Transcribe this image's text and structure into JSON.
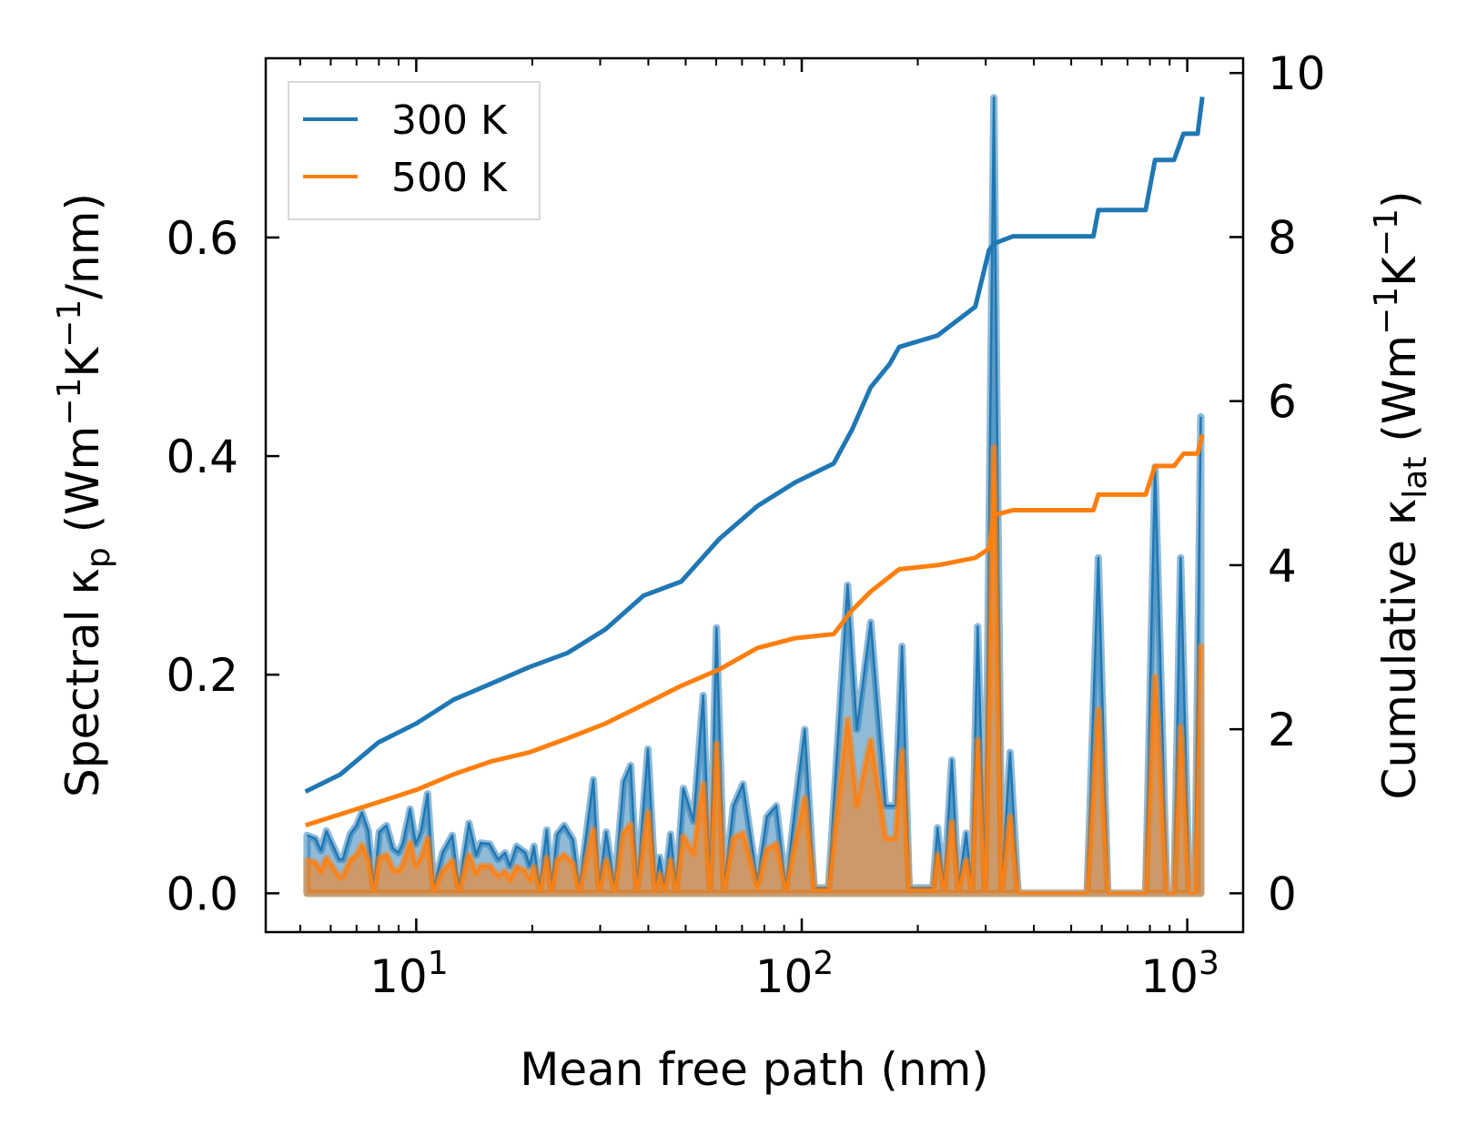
{
  "chart_data": {
    "type": "line",
    "xlabel": "Mean free path (nm)",
    "ylabel_left": "Spectral κ_p (Wm^{−1}K^{−1}/nm)",
    "ylabel_right": "Cumulative κ_lat (Wm^{−1}K^{−1})",
    "xscale": "log",
    "xlim": [
      4.07,
      1396
    ],
    "ylim_left": [
      -0.0355,
      0.764
    ],
    "ylim_right": [
      -0.473,
      10.18
    ],
    "x_ticks": [
      {
        "value": 10,
        "base": "10",
        "exp": "1"
      },
      {
        "value": 100,
        "base": "10",
        "exp": "2"
      },
      {
        "value": 1000,
        "base": "10",
        "exp": "3"
      }
    ],
    "y_left_ticks": [
      {
        "value": 0,
        "label": "0.0"
      },
      {
        "value": 0.2,
        "label": "0.2"
      },
      {
        "value": 0.4,
        "label": "0.4"
      },
      {
        "value": 0.6,
        "label": "0.6"
      }
    ],
    "y_right_ticks": [
      {
        "value": 0,
        "label": "0"
      },
      {
        "value": 2,
        "label": "2"
      },
      {
        "value": 4,
        "label": "4"
      },
      {
        "value": 6,
        "label": "6"
      },
      {
        "value": 8,
        "label": "8"
      },
      {
        "value": 10,
        "label": "10"
      }
    ],
    "grid": false,
    "legend": {
      "placement": "top-left",
      "entries": [
        "300 K",
        "500 K"
      ]
    },
    "colors": {
      "300 K": "#1f77b4",
      "500 K": "#ff7f0e"
    },
    "spectral": {
      "x": [
        5.21,
        5.48,
        5.66,
        5.85,
        6.31,
        6.45,
        6.74,
        7.0,
        7.23,
        7.51,
        7.76,
        8.02,
        8.37,
        8.7,
        8.99,
        9.24,
        9.64,
        9.97,
        10.3,
        10.7,
        11.1,
        11.7,
        12.4,
        12.9,
        13.7,
        14.3,
        14.7,
        15.5,
        16.3,
        17.0,
        17.5,
        18.2,
        19.2,
        19.7,
        20.2,
        20.9,
        21.8,
        22.4,
        23.2,
        24.2,
        25.5,
        26.5,
        28.8,
        29.8,
        31.1,
        32.7,
        34.5,
        36.0,
        37.4,
        39.9,
        41.7,
        42.8,
        44.0,
        45.7,
        47.2,
        49.3,
        52.4,
        55.5,
        57.8,
        60.1,
        62.9,
        66.5,
        70.4,
        76.7,
        81.2,
        85.9,
        90.9,
        96.2,
        101.8,
        107.7,
        117.3,
        131.5,
        139,
        151,
        165,
        175,
        182,
        190,
        219,
        225,
        234,
        245,
        255,
        267,
        276,
        286,
        299,
        315,
        330,
        347,
        364,
        550,
        588,
        622,
        780,
        825,
        885,
        924,
        961,
        1012,
        1047,
        1084
      ],
      "series": [
        {
          "name": "300 K",
          "values": [
            0.053,
            0.05,
            0.039,
            0.057,
            0.031,
            0.031,
            0.054,
            0.062,
            0.074,
            0.057,
            0.005,
            0.056,
            0.062,
            0.041,
            0.037,
            0.046,
            0.077,
            0.045,
            0.057,
            0.091,
            0.005,
            0.037,
            0.053,
            0.005,
            0.064,
            0.035,
            0.046,
            0.045,
            0.031,
            0.037,
            0.025,
            0.043,
            0.037,
            0.025,
            0.043,
            0.005,
            0.058,
            0.005,
            0.054,
            0.062,
            0.049,
            0.005,
            0.104,
            0.005,
            0.056,
            0.005,
            0.102,
            0.117,
            0.005,
            0.132,
            0.005,
            0.033,
            0.005,
            0.054,
            0.005,
            0.096,
            0.066,
            0.181,
            0.005,
            0.243,
            0.005,
            0.08,
            0.1,
            0.01,
            0.07,
            0.08,
            0.005,
            0.08,
            0.15,
            0.005,
            0.005,
            0.282,
            0.15,
            0.248,
            0.08,
            0.08,
            0.226,
            0.005,
            0.005,
            0.06,
            0.005,
            0.122,
            0.005,
            0.055,
            0.005,
            0.244,
            0.005,
            0.728,
            0.005,
            0.129,
            0,
            0,
            0.307,
            0,
            0,
            0.39,
            0,
            0,
            0.307,
            0,
            0,
            0.436
          ]
        },
        {
          "name": "500 K",
          "values": [
            0.03,
            0.028,
            0.02,
            0.032,
            0.015,
            0.015,
            0.03,
            0.035,
            0.044,
            0.03,
            0.002,
            0.032,
            0.035,
            0.022,
            0.02,
            0.026,
            0.046,
            0.025,
            0.032,
            0.05,
            0.002,
            0.02,
            0.03,
            0.002,
            0.035,
            0.018,
            0.025,
            0.025,
            0.016,
            0.02,
            0.012,
            0.024,
            0.02,
            0.012,
            0.024,
            0.002,
            0.032,
            0.002,
            0.03,
            0.035,
            0.027,
            0.002,
            0.058,
            0.002,
            0.03,
            0.002,
            0.055,
            0.063,
            0.002,
            0.074,
            0.002,
            0.017,
            0.002,
            0.03,
            0.002,
            0.052,
            0.036,
            0.1,
            0.003,
            0.137,
            0.003,
            0.05,
            0.055,
            0.005,
            0.04,
            0.045,
            0.003,
            0.045,
            0.087,
            0.003,
            0.003,
            0.159,
            0.08,
            0.14,
            0.05,
            0.05,
            0.13,
            0.003,
            0.003,
            0.035,
            0.003,
            0.065,
            0.003,
            0.03,
            0.003,
            0.14,
            0.003,
            0.408,
            0.003,
            0.07,
            0,
            0,
            0.168,
            0,
            0,
            0.198,
            0,
            0,
            0.152,
            0,
            0,
            0.226
          ]
        }
      ]
    },
    "cumulative": [
      {
        "name": "300 K",
        "x": [
          5.16,
          6.36,
          7.98,
          10,
          12.5,
          15.7,
          19.7,
          24.7,
          31.0,
          38.9,
          48.7,
          61.1,
          76.7,
          96.2,
          121,
          135,
          151,
          169,
          179,
          225,
          282,
          306,
          315,
          353,
          571,
          588,
          780,
          825,
          924,
          978,
          1064,
          1094
        ],
        "values": [
          1.24,
          1.45,
          1.84,
          2.07,
          2.36,
          2.56,
          2.76,
          2.93,
          3.22,
          3.63,
          3.8,
          4.32,
          4.72,
          5.01,
          5.24,
          5.65,
          6.17,
          6.45,
          6.66,
          6.8,
          7.15,
          7.84,
          7.92,
          8.01,
          8.01,
          8.33,
          8.33,
          8.94,
          8.94,
          9.26,
          9.26,
          9.71
        ]
      },
      {
        "name": "500 K",
        "x": [
          5.16,
          7.98,
          10,
          12.5,
          15.7,
          19.7,
          24.7,
          31.0,
          38.9,
          48.7,
          61.1,
          76.7,
          96.2,
          121,
          135,
          151,
          179,
          225,
          282,
          306,
          315,
          353,
          571,
          588,
          780,
          825,
          924,
          978,
          1064,
          1094
        ],
        "values": [
          0.83,
          1.11,
          1.26,
          1.45,
          1.61,
          1.72,
          1.89,
          2.07,
          2.3,
          2.53,
          2.73,
          2.99,
          3.11,
          3.16,
          3.45,
          3.68,
          3.95,
          4.0,
          4.09,
          4.2,
          4.61,
          4.67,
          4.67,
          4.86,
          4.86,
          5.21,
          5.21,
          5.36,
          5.36,
          5.59
        ]
      }
    ]
  }
}
